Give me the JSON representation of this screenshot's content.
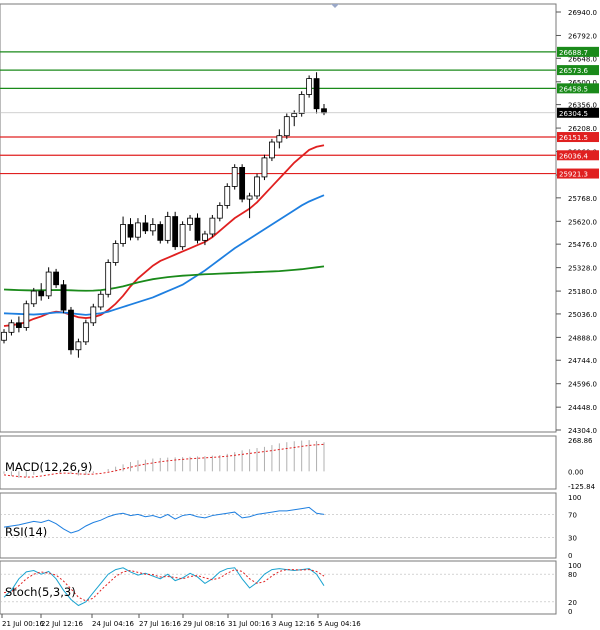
{
  "chart_data": {
    "type": "candlestick",
    "price_axis": {
      "ticks": [
        "26940.0",
        "26792.0",
        "26648.0",
        "26500.0",
        "26356.0",
        "26208.0",
        "26060.0",
        "25912.0",
        "25768.0",
        "25620.0",
        "25476.0",
        "25328.0",
        "25180.0",
        "25036.0",
        "24888.0",
        "24744.0",
        "24596.0",
        "24448.0",
        "24304.0"
      ],
      "range": [
        24304,
        26940
      ]
    },
    "time_labels": [
      "21 Jul 00:16",
      "22 Jul 12:16",
      "24 Jul 04:16",
      "27 Jul 16:16",
      "29 Jul 08:16",
      "31 Jul 00:16",
      "3 Aug 12:16",
      "5 Aug 04:16"
    ],
    "levels": [
      {
        "label": "26688.7",
        "value": 26688.7,
        "color": "#1a8a1a"
      },
      {
        "label": "26573.6",
        "value": 26573.6,
        "color": "#1a8a1a"
      },
      {
        "label": "26458.5",
        "value": 26458.5,
        "color": "#1a8a1a"
      },
      {
        "label": "26151.5",
        "value": 26151.5,
        "color": "#e02020"
      },
      {
        "label": "26036.4",
        "value": 26036.4,
        "color": "#e02020"
      },
      {
        "label": "25921.3",
        "value": 25921.3,
        "color": "#e02020"
      }
    ],
    "current_price": {
      "label": "26304.5",
      "value": 26304.5
    },
    "candles": [
      [
        24870,
        24940,
        24850,
        24920
      ],
      [
        24920,
        25000,
        24900,
        24980
      ],
      [
        24980,
        25020,
        24920,
        24950
      ],
      [
        24950,
        25120,
        24930,
        25100
      ],
      [
        25100,
        25200,
        25080,
        25180
      ],
      [
        25180,
        25230,
        25120,
        25150
      ],
      [
        25150,
        25330,
        25130,
        25300
      ],
      [
        25300,
        25320,
        25200,
        25220
      ],
      [
        25220,
        25250,
        25040,
        25060
      ],
      [
        25060,
        25080,
        24780,
        24810
      ],
      [
        24810,
        24880,
        24760,
        24860
      ],
      [
        24860,
        25000,
        24840,
        24980
      ],
      [
        24980,
        25100,
        24960,
        25080
      ],
      [
        25080,
        25180,
        25060,
        25160
      ],
      [
        25160,
        25380,
        25140,
        25360
      ],
      [
        25360,
        25500,
        25340,
        25480
      ],
      [
        25480,
        25650,
        25460,
        25600
      ],
      [
        25600,
        25640,
        25500,
        25520
      ],
      [
        25520,
        25640,
        25500,
        25610
      ],
      [
        25610,
        25660,
        25540,
        25560
      ],
      [
        25560,
        25640,
        25530,
        25600
      ],
      [
        25600,
        25620,
        25480,
        25500
      ],
      [
        25500,
        25680,
        25480,
        25650
      ],
      [
        25650,
        25680,
        25440,
        25460
      ],
      [
        25460,
        25620,
        25440,
        25600
      ],
      [
        25600,
        25660,
        25560,
        25640
      ],
      [
        25640,
        25670,
        25480,
        25500
      ],
      [
        25500,
        25560,
        25470,
        25540
      ],
      [
        25540,
        25660,
        25520,
        25640
      ],
      [
        25640,
        25740,
        25620,
        25720
      ],
      [
        25720,
        25860,
        25700,
        25840
      ],
      [
        25840,
        25980,
        25820,
        25960
      ],
      [
        25960,
        25980,
        25740,
        25760
      ],
      [
        25760,
        25800,
        25640,
        25780
      ],
      [
        25780,
        25920,
        25760,
        25900
      ],
      [
        25900,
        26040,
        25880,
        26020
      ],
      [
        26020,
        26140,
        26000,
        26120
      ],
      [
        26120,
        26200,
        26080,
        26160
      ],
      [
        26160,
        26300,
        26140,
        26280
      ],
      [
        26280,
        26320,
        26220,
        26300
      ],
      [
        26300,
        26440,
        26280,
        26420
      ],
      [
        26420,
        26540,
        26400,
        26520
      ],
      [
        26520,
        26560,
        26300,
        26330
      ],
      [
        26330,
        26360,
        26290,
        26304.5
      ]
    ],
    "moving_averages": [
      {
        "color": "#e02020",
        "values": [
          24960,
          24965,
          24972,
          24985,
          25005,
          25020,
          25040,
          25050,
          25045,
          25030,
          25015,
          25010,
          25015,
          25030,
          25060,
          25100,
          25150,
          25210,
          25260,
          25300,
          25340,
          25370,
          25390,
          25410,
          25430,
          25450,
          25470,
          25490,
          25520,
          25560,
          25600,
          25640,
          25670,
          25700,
          25740,
          25790,
          25840,
          25890,
          25940,
          25990,
          26030,
          26070,
          26090,
          26100
        ]
      },
      {
        "color": "#1e7fe0",
        "values": [
          25040,
          25038,
          25036,
          25034,
          25032,
          25035,
          25040,
          25045,
          25045,
          25040,
          25035,
          25030,
          25035,
          25040,
          25050,
          25065,
          25080,
          25095,
          25110,
          25125,
          25140,
          25160,
          25180,
          25200,
          25220,
          25250,
          25280,
          25310,
          25345,
          25380,
          25415,
          25450,
          25480,
          25510,
          25540,
          25570,
          25600,
          25630,
          25660,
          25690,
          25720,
          25745,
          25765,
          25785
        ]
      },
      {
        "color": "#1a8a1a",
        "values": [
          25190,
          25188,
          25186,
          25185,
          25184,
          25185,
          25186,
          25187,
          25186,
          25185,
          25183,
          25182,
          25183,
          25186,
          25192,
          25200,
          25210,
          25222,
          25235,
          25245,
          25255,
          25262,
          25268,
          25273,
          25277,
          25280,
          25283,
          25286,
          25288,
          25290,
          25292,
          25294,
          25296,
          25298,
          25300,
          25302,
          25304,
          25306,
          25310,
          25314,
          25318,
          25324,
          25330,
          25336
        ]
      }
    ],
    "macd": {
      "label": "MACD(12,26,9)",
      "ticks": [
        "268.86",
        "0.00",
        "-125.84"
      ],
      "hist": [
        -20,
        -40,
        -55,
        -50,
        -30,
        -10,
        5,
        10,
        0,
        -20,
        -35,
        -30,
        -15,
        0,
        20,
        40,
        60,
        80,
        95,
        100,
        110,
        115,
        118,
        120,
        122,
        125,
        128,
        130,
        135,
        140,
        150,
        165,
        180,
        190,
        200,
        210,
        225,
        240,
        250,
        258,
        264,
        268,
        260,
        250
      ],
      "signal": [
        -30,
        -38,
        -45,
        -50,
        -48,
        -40,
        -30,
        -20,
        -15,
        -17,
        -22,
        -25,
        -24,
        -18,
        -8,
        5,
        20,
        35,
        50,
        62,
        72,
        82,
        90,
        97,
        103,
        108,
        112,
        116,
        120,
        124,
        130,
        138,
        146,
        154,
        162,
        170,
        178,
        187,
        196,
        205,
        214,
        222,
        228,
        232
      ]
    },
    "rsi": {
      "label": "RSI(14)",
      "ticks": [
        "100",
        "70",
        "30",
        "0"
      ],
      "values": [
        48,
        50,
        52,
        55,
        58,
        56,
        60,
        54,
        45,
        38,
        42,
        50,
        56,
        60,
        66,
        70,
        72,
        68,
        70,
        66,
        68,
        64,
        70,
        62,
        68,
        70,
        66,
        64,
        68,
        70,
        72,
        74,
        64,
        66,
        70,
        72,
        74,
        76,
        76,
        78,
        80,
        82,
        72,
        70
      ]
    },
    "stoch": {
      "label": "Stoch(5,3,3)",
      "ticks": [
        "100",
        "80",
        "20",
        "0"
      ],
      "k": [
        30,
        45,
        70,
        85,
        88,
        80,
        86,
        70,
        45,
        25,
        12,
        20,
        40,
        60,
        80,
        90,
        94,
        85,
        78,
        82,
        76,
        70,
        80,
        66,
        72,
        82,
        74,
        60,
        70,
        85,
        92,
        94,
        70,
        50,
        62,
        80,
        90,
        92,
        90,
        88,
        90,
        92,
        80,
        55
      ],
      "d": [
        40,
        42,
        55,
        70,
        80,
        85,
        82,
        78,
        65,
        48,
        30,
        22,
        28,
        45,
        60,
        75,
        85,
        88,
        84,
        80,
        79,
        74,
        75,
        73,
        70,
        75,
        77,
        72,
        68,
        72,
        82,
        90,
        86,
        70,
        60,
        64,
        76,
        86,
        90,
        90,
        89,
        90,
        86,
        76
      ]
    }
  }
}
